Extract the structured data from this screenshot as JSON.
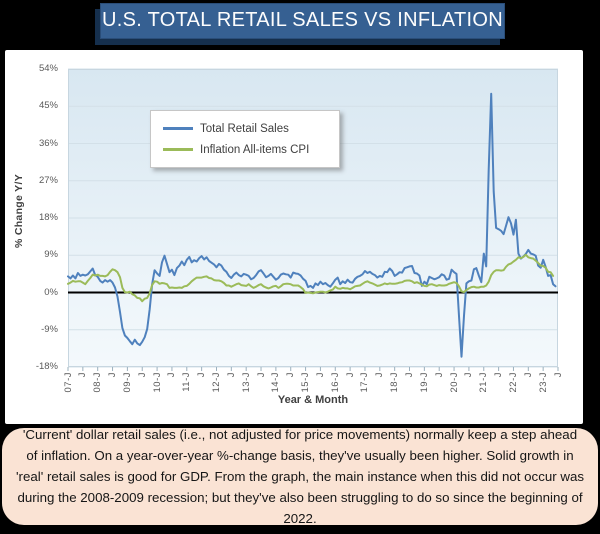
{
  "header": {
    "title": "U.S. TOTAL RETAIL SALES VS INFLATION"
  },
  "colors": {
    "banner_bg": "#366092",
    "banner_text": "#fdfdfd",
    "plot_bg_top": "#d8e7f1",
    "plot_bg_bottom": "#f4f9fc",
    "grid": "#d3e0e8",
    "plot_border": "#c7d6e0",
    "zero_line": "#000000",
    "tick": "#9bb0bd",
    "retail_line": "#4f81bd",
    "cpi_line": "#9bbb59",
    "axis_text": "#595959",
    "caption_bg": "#fae3d4",
    "caption_text": "#161616"
  },
  "chart_data": {
    "type": "line",
    "title": "U.S. TOTAL RETAIL SALES VS INFLATION",
    "ylabel": "% Change Y/Y",
    "xlabel": "Year & Month",
    "ylim": [
      -18,
      54
    ],
    "grid": true,
    "legend_position": "upper left",
    "yticks": [
      {
        "value": 54,
        "label": "54%"
      },
      {
        "value": 45,
        "label": "45%"
      },
      {
        "value": 36,
        "label": "36%"
      },
      {
        "value": 27,
        "label": "27%"
      },
      {
        "value": 18,
        "label": "18%"
      },
      {
        "value": 9,
        "label": "9%"
      },
      {
        "value": 0,
        "label": "0%"
      },
      {
        "value": -9,
        "label": "-9%"
      },
      {
        "value": -18,
        "label": "-18%"
      }
    ],
    "x_months_total": 198,
    "x_start": "2007-01",
    "x_end": "2023-06",
    "x_ticks": [
      {
        "m": 0,
        "label": "07-J"
      },
      {
        "m": 6,
        "label": "J"
      },
      {
        "m": 12,
        "label": "08-J"
      },
      {
        "m": 18,
        "label": "J"
      },
      {
        "m": 24,
        "label": "09-J"
      },
      {
        "m": 30,
        "label": "J"
      },
      {
        "m": 36,
        "label": "10-J"
      },
      {
        "m": 42,
        "label": "J"
      },
      {
        "m": 48,
        "label": "11-J"
      },
      {
        "m": 54,
        "label": "J"
      },
      {
        "m": 60,
        "label": "12-J"
      },
      {
        "m": 66,
        "label": "J"
      },
      {
        "m": 72,
        "label": "13-J"
      },
      {
        "m": 78,
        "label": "J"
      },
      {
        "m": 84,
        "label": "14-J"
      },
      {
        "m": 90,
        "label": "J"
      },
      {
        "m": 96,
        "label": "15-J"
      },
      {
        "m": 102,
        "label": "J"
      },
      {
        "m": 108,
        "label": "16-J"
      },
      {
        "m": 114,
        "label": "J"
      },
      {
        "m": 120,
        "label": "17-J"
      },
      {
        "m": 126,
        "label": "J"
      },
      {
        "m": 132,
        "label": "18-J"
      },
      {
        "m": 138,
        "label": "J"
      },
      {
        "m": 144,
        "label": "19-J"
      },
      {
        "m": 150,
        "label": "J"
      },
      {
        "m": 156,
        "label": "20-J"
      },
      {
        "m": 162,
        "label": "J"
      },
      {
        "m": 168,
        "label": "21-J"
      },
      {
        "m": 174,
        "label": "J"
      },
      {
        "m": 180,
        "label": "22-J"
      },
      {
        "m": 186,
        "label": "J"
      },
      {
        "m": 192,
        "label": "23-J"
      },
      {
        "m": 198,
        "label": "J"
      }
    ],
    "series": [
      {
        "id": "retail-sales",
        "name": "Total Retail Sales",
        "color": "#4f81bd",
        "values": [
          3.9,
          3.4,
          4.1,
          3.4,
          4.7,
          4.0,
          4.3,
          4.1,
          4.4,
          5.1,
          5.8,
          4.2,
          3.8,
          2.8,
          2.4,
          3.0,
          2.6,
          3.0,
          2.4,
          1.2,
          -1.0,
          -4.7,
          -8.6,
          -10.4,
          -11.0,
          -11.8,
          -12.5,
          -11.4,
          -12.3,
          -12.7,
          -11.9,
          -10.8,
          -8.8,
          -4.0,
          1.9,
          5.4,
          4.6,
          4.0,
          7.3,
          8.9,
          6.9,
          4.9,
          5.5,
          4.2,
          5.9,
          6.5,
          7.5,
          6.6,
          7.9,
          8.6,
          7.3,
          7.8,
          7.5,
          8.3,
          8.8,
          8.0,
          8.5,
          7.6,
          7.2,
          6.8,
          6.1,
          6.9,
          6.5,
          5.5,
          5.0,
          4.0,
          3.5,
          4.3,
          4.8,
          4.2,
          3.9,
          4.5,
          4.3,
          4.0,
          3.2,
          3.5,
          4.2,
          5.1,
          5.4,
          4.6,
          3.7,
          4.0,
          4.5,
          3.8,
          3.1,
          3.5,
          4.3,
          4.6,
          4.4,
          4.3,
          3.6,
          4.8,
          4.6,
          4.5,
          4.1,
          3.3,
          2.8,
          1.3,
          1.6,
          1.1,
          2.2,
          1.8,
          2.6,
          2.0,
          2.3,
          1.8,
          1.4,
          2.2,
          3.1,
          3.6,
          2.0,
          2.7,
          2.3,
          3.1,
          2.5,
          2.4,
          3.3,
          3.8,
          4.0,
          4.4,
          5.2,
          4.7,
          5.0,
          4.5,
          4.2,
          3.6,
          4.0,
          3.8,
          5.0,
          4.9,
          5.8,
          5.2,
          4.0,
          4.4,
          4.9,
          4.8,
          5.9,
          6.1,
          6.3,
          6.4,
          4.7,
          4.6,
          4.1,
          1.6,
          2.6,
          2.0,
          3.8,
          3.5,
          3.2,
          3.4,
          3.7,
          4.4,
          4.1,
          3.1,
          3.3,
          5.5,
          4.9,
          4.5,
          -5.7,
          -15.5,
          -5.6,
          2.2,
          2.7,
          2.9,
          5.6,
          5.9,
          4.1,
          2.5,
          9.4,
          6.3,
          29.7,
          48.0,
          24.4,
          15.6,
          15.3,
          14.9,
          14.1,
          16.1,
          18.2,
          16.7,
          14.0,
          17.6,
          9.4,
          8.2,
          8.7,
          9.3,
          10.3,
          9.4,
          9.2,
          8.9,
          6.5,
          6.0,
          7.9,
          6.2,
          4.0,
          4.2,
          2.0,
          1.5
        ]
      },
      {
        "id": "cpi",
        "name": "Inflation All-items CPI",
        "color": "#9bbb59",
        "values": [
          2.1,
          2.4,
          2.8,
          2.6,
          2.7,
          2.7,
          2.4,
          2.0,
          2.8,
          3.5,
          4.3,
          4.1,
          4.3,
          4.0,
          4.0,
          3.9,
          4.2,
          5.0,
          5.6,
          5.4,
          4.9,
          3.7,
          1.1,
          0.1,
          0.0,
          0.2,
          -0.4,
          -0.7,
          -1.3,
          -1.4,
          -2.1,
          -1.5,
          -1.3,
          -0.2,
          1.8,
          2.7,
          2.6,
          2.1,
          2.3,
          2.2,
          2.0,
          1.1,
          1.2,
          1.1,
          1.1,
          1.2,
          1.1,
          1.5,
          1.6,
          2.1,
          2.7,
          3.2,
          3.6,
          3.6,
          3.6,
          3.8,
          3.9,
          3.5,
          3.4,
          3.0,
          2.9,
          2.9,
          2.7,
          2.3,
          1.7,
          1.7,
          1.4,
          1.7,
          2.0,
          2.2,
          1.8,
          1.7,
          1.6,
          2.0,
          1.5,
          1.1,
          1.4,
          1.8,
          2.0,
          1.5,
          1.2,
          1.0,
          1.2,
          1.5,
          1.6,
          1.1,
          1.5,
          2.0,
          2.1,
          2.1,
          2.0,
          1.7,
          1.7,
          1.7,
          1.3,
          0.8,
          -0.1,
          0.0,
          -0.1,
          -0.2,
          0.0,
          0.1,
          0.2,
          0.2,
          0.0,
          0.2,
          0.5,
          0.7,
          1.4,
          1.0,
          0.9,
          1.1,
          1.0,
          1.0,
          0.8,
          1.1,
          1.5,
          1.6,
          1.7,
          2.1,
          2.5,
          2.7,
          2.4,
          2.2,
          1.9,
          1.6,
          1.7,
          1.9,
          2.2,
          2.0,
          2.2,
          2.1,
          2.1,
          2.2,
          2.4,
          2.5,
          2.8,
          2.9,
          2.9,
          2.7,
          2.3,
          2.5,
          2.2,
          1.9,
          1.6,
          1.5,
          1.9,
          2.0,
          1.8,
          1.6,
          1.8,
          1.7,
          1.7,
          1.8,
          2.1,
          2.3,
          2.5,
          2.3,
          1.5,
          0.3,
          0.1,
          0.6,
          1.0,
          1.3,
          1.4,
          1.2,
          1.2,
          1.4,
          1.4,
          1.7,
          2.6,
          4.2,
          5.0,
          5.4,
          5.4,
          5.3,
          5.4,
          6.2,
          6.8,
          7.0,
          7.5,
          7.9,
          8.5,
          8.3,
          8.6,
          9.1,
          8.5,
          8.3,
          8.2,
          7.7,
          7.1,
          6.5,
          6.4,
          6.0,
          5.0,
          4.9,
          4.0,
          null
        ]
      }
    ]
  },
  "caption": {
    "text": "'Current' dollar retail sales (i.e., not adjusted for price movements) normally keep a step ahead of inflation. On a year-over-year %-change basis, they've usually been higher. Solid growth in 'real' retail sales is good for GDP. From the graph, the main instance when this did not occur was during the 2008-2009 recession; but they've also been struggling to do so since the beginning of 2022."
  }
}
